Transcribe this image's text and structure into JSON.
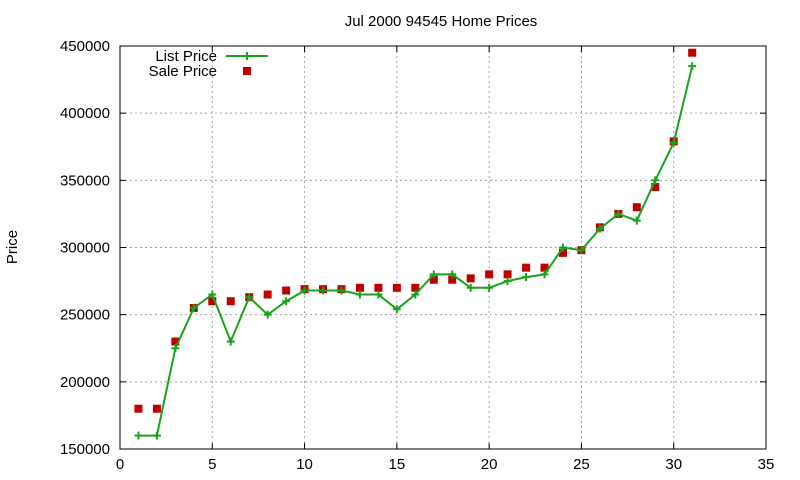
{
  "chart_data": {
    "type": "line",
    "title": "Jul 2000 94545 Home Prices",
    "xlabel": "",
    "ylabel": "Price",
    "xlim": [
      0,
      35
    ],
    "ylim": [
      150000,
      450000
    ],
    "xticks": [
      0,
      5,
      10,
      15,
      20,
      25,
      30,
      35
    ],
    "yticks": [
      150000,
      200000,
      250000,
      300000,
      350000,
      400000,
      450000
    ],
    "grid": true,
    "legend_position": "top-left",
    "x": [
      1,
      2,
      3,
      4,
      5,
      6,
      7,
      8,
      9,
      10,
      11,
      12,
      13,
      14,
      15,
      16,
      17,
      18,
      19,
      20,
      21,
      22,
      23,
      24,
      25,
      26,
      27,
      28,
      29,
      30,
      31
    ],
    "series": [
      {
        "name": "List Price",
        "style": "line+cross",
        "color": "#1aa31a",
        "values": [
          160000,
          160000,
          225000,
          255000,
          265000,
          230000,
          263000,
          250000,
          260000,
          268000,
          268000,
          268000,
          265000,
          265000,
          254000,
          265000,
          280000,
          280000,
          270000,
          270000,
          275000,
          278000,
          280000,
          300000,
          298000,
          314000,
          325000,
          320000,
          350000,
          378000,
          435000
        ]
      },
      {
        "name": "Sale Price",
        "style": "square",
        "color": "#c00000",
        "values": [
          180000,
          180000,
          230000,
          255000,
          260000,
          260000,
          263000,
          265000,
          268000,
          269000,
          269000,
          269000,
          270000,
          270000,
          270000,
          270000,
          276000,
          276000,
          277000,
          280000,
          280000,
          285000,
          285000,
          296000,
          298000,
          315000,
          325000,
          330000,
          345000,
          379000,
          445000
        ]
      }
    ]
  }
}
